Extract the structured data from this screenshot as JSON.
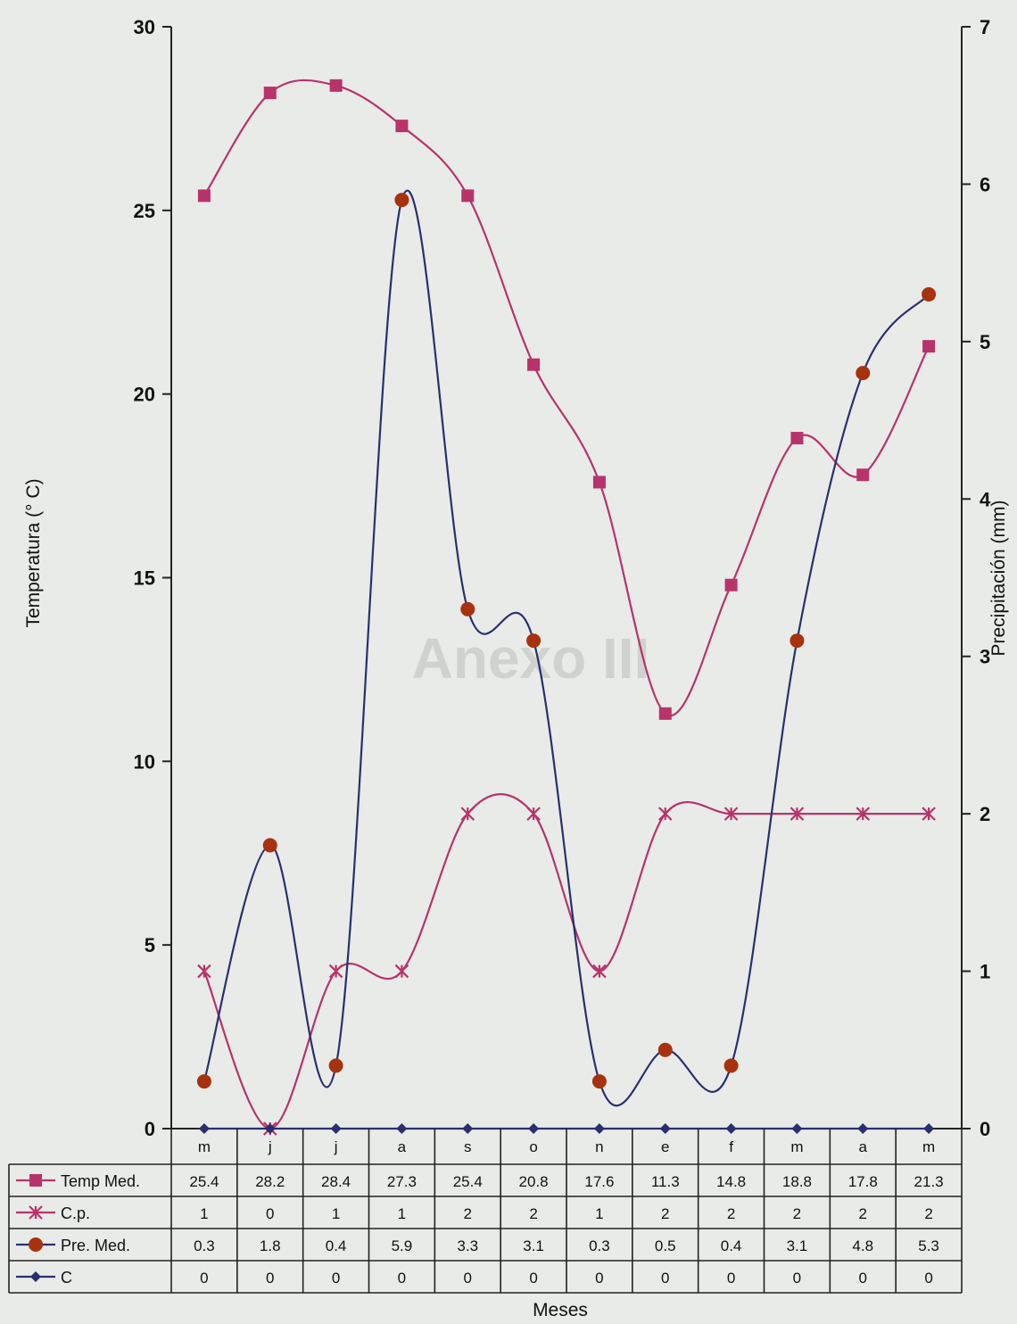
{
  "chart_data": {
    "type": "line",
    "watermark": "Anexo III",
    "categories": [
      "m",
      "j",
      "j",
      "a",
      "s",
      "o",
      "n",
      "e",
      "f",
      "m",
      "a",
      "m"
    ],
    "xlabel": "Meses",
    "ylabel_left": "Temperatura (° C)",
    "ylabel_right": "Precipitación (mm)",
    "y_left": {
      "min": 0,
      "max": 30,
      "ticks": [
        "0",
        "5",
        "10",
        "15",
        "20",
        "25",
        "30"
      ]
    },
    "y_right": {
      "min": 0,
      "max": 7,
      "ticks": [
        "0",
        "1",
        "2",
        "3",
        "4",
        "5",
        "6",
        "7"
      ]
    },
    "series": [
      {
        "name": "Temp Med.",
        "axis": "left",
        "color": "#b8336a",
        "marker": "square",
        "values": [
          25.4,
          28.2,
          28.4,
          27.3,
          25.4,
          20.8,
          17.6,
          11.3,
          14.8,
          18.8,
          17.8,
          21.3
        ],
        "labels": [
          "25.4",
          "28.2",
          "28.4",
          "27.3",
          "25.4",
          "20.8",
          "17.6",
          "11.3",
          "14.8",
          "18.8",
          "17.8",
          "21.3"
        ]
      },
      {
        "name": "C.p.",
        "axis": "right",
        "color": "#b8336a",
        "marker": "star",
        "values": [
          1,
          0,
          1,
          1,
          2,
          2,
          1,
          2,
          2,
          2,
          2,
          2
        ],
        "labels": [
          "1",
          "0",
          "1",
          "1",
          "2",
          "2",
          "1",
          "2",
          "2",
          "2",
          "2",
          "2"
        ]
      },
      {
        "name": "Pre. Med.",
        "axis": "right",
        "color": "#a8320e",
        "line_color": "#2b2f6e",
        "marker": "circle",
        "values": [
          0.3,
          1.8,
          0.4,
          5.9,
          3.3,
          3.1,
          0.3,
          0.5,
          0.4,
          3.1,
          4.8,
          5.3
        ],
        "labels": [
          "0.3",
          "1.8",
          "0.4",
          "5.9",
          "3.3",
          "3.1",
          "0.3",
          "0.5",
          "0.4",
          "3.1",
          "4.8",
          "5.3"
        ]
      },
      {
        "name": "C",
        "axis": "right",
        "color": "#2b2f6e",
        "marker": "diamond",
        "values": [
          0,
          0,
          0,
          0,
          0,
          0,
          0,
          0,
          0,
          0,
          0,
          0
        ],
        "labels": [
          "0",
          "0",
          "0",
          "0",
          "0",
          "0",
          "0",
          "0",
          "0",
          "0",
          "0",
          "0"
        ]
      }
    ],
    "grid": false,
    "legend": "data-table"
  }
}
